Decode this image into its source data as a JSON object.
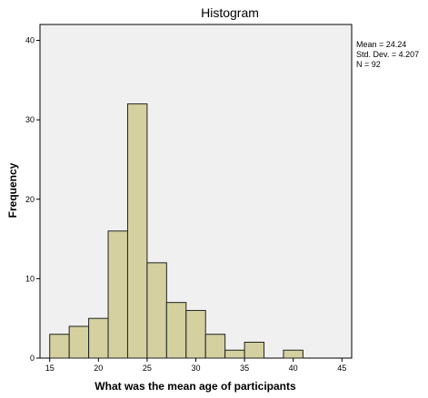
{
  "chart_data": {
    "type": "bar",
    "title": "Histogram",
    "xlabel": "What was the mean age of participants",
    "ylabel": "Frequency",
    "xlim": [
      14,
      46
    ],
    "ylim": [
      0,
      42
    ],
    "bin_width": 2,
    "x_ticks": [
      15,
      20,
      25,
      30,
      35,
      40,
      45
    ],
    "y_ticks": [
      0,
      10,
      20,
      30,
      40
    ],
    "bins": [
      {
        "start": 15,
        "end": 17,
        "value": 3
      },
      {
        "start": 17,
        "end": 19,
        "value": 4
      },
      {
        "start": 19,
        "end": 21,
        "value": 5
      },
      {
        "start": 21,
        "end": 23,
        "value": 16
      },
      {
        "start": 23,
        "end": 25,
        "value": 32
      },
      {
        "start": 25,
        "end": 27,
        "value": 12
      },
      {
        "start": 27,
        "end": 29,
        "value": 7
      },
      {
        "start": 29,
        "end": 31,
        "value": 6
      },
      {
        "start": 31,
        "end": 33,
        "value": 3
      },
      {
        "start": 33,
        "end": 35,
        "value": 1
      },
      {
        "start": 35,
        "end": 37,
        "value": 2
      },
      {
        "start": 37,
        "end": 39,
        "value": 0
      },
      {
        "start": 39,
        "end": 41,
        "value": 1
      }
    ],
    "stats": {
      "mean": "Mean = 24.24",
      "std_dev": "Std. Dev. = 4.207",
      "n": "N = 92"
    },
    "grid": false,
    "colors": {
      "bar_fill": "#d4d0a0",
      "bar_stroke": "#222222",
      "plot_background": "#f0f0f0"
    }
  }
}
